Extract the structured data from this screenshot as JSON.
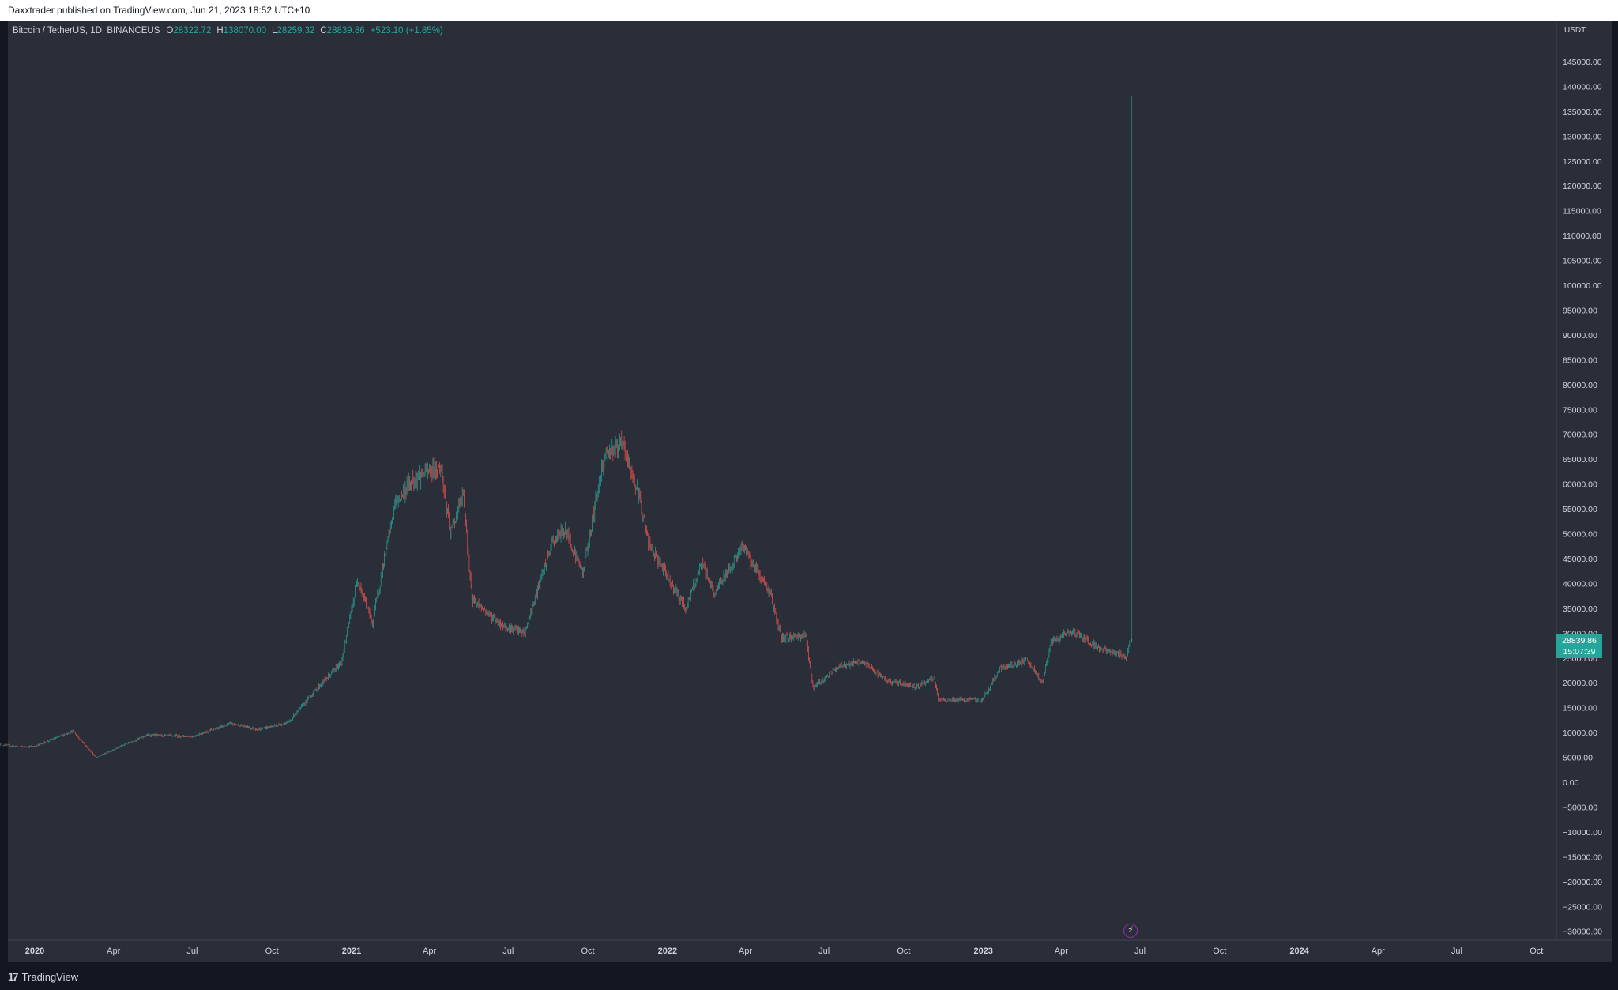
{
  "header": {
    "publisher_text": "Daxxtrader published on TradingView.com, Jun 21, 2023 18:52 UTC+10"
  },
  "legend": {
    "symbol": "Bitcoin / TetherUS, 1D, BINANCEUS",
    "open_label": "O",
    "open": "28322.72",
    "high_label": "H",
    "high": "138070.00",
    "low_label": "L",
    "low": "28259.32",
    "close_label": "C",
    "close": "28839.86",
    "change": "+523.10 (+1.85%)"
  },
  "price_axis": {
    "currency": "USDT",
    "last_price": "28839.86",
    "countdown": "15:07:39"
  },
  "footer": {
    "brand": "TradingView"
  },
  "colors": {
    "up": "#26a69a",
    "down": "#ef5350",
    "background": "#2a2e39",
    "text": "#d1d4dc",
    "flash_icon": "#9c27b0"
  },
  "icons": {
    "flash": "lightning-icon",
    "logo": "tradingview-logo-icon"
  },
  "chart_data": {
    "type": "candlestick",
    "title": "Bitcoin / TetherUS, 1D, BINANCEUS",
    "interval": "1D",
    "ylim": [
      -32000,
      148000
    ],
    "y_ticks": [
      -30000,
      -25000,
      -20000,
      -15000,
      -10000,
      -5000,
      0,
      5000,
      10000,
      15000,
      20000,
      25000,
      30000,
      35000,
      40000,
      45000,
      50000,
      55000,
      60000,
      65000,
      70000,
      75000,
      80000,
      85000,
      90000,
      95000,
      100000,
      105000,
      110000,
      115000,
      120000,
      125000,
      130000,
      135000,
      140000,
      145000
    ],
    "x_tick_labels": [
      "2020",
      "Apr",
      "Jul",
      "Oct",
      "2021",
      "Apr",
      "Jul",
      "Oct",
      "2022",
      "Apr",
      "Jul",
      "Oct",
      "2023",
      "Apr",
      "Jul",
      "Oct",
      "2024",
      "Apr",
      "Jul",
      "Oct"
    ],
    "x_range": [
      "2019-11-20",
      "2024-11-01"
    ],
    "price_path": [
      {
        "date": "2019-11-20",
        "close": 7600
      },
      {
        "date": "2019-12-15",
        "close": 7100
      },
      {
        "date": "2020-01-01",
        "close": 7200
      },
      {
        "date": "2020-02-14",
        "close": 10300
      },
      {
        "date": "2020-03-12",
        "close": 4900
      },
      {
        "date": "2020-04-01",
        "close": 6600
      },
      {
        "date": "2020-05-10",
        "close": 9500
      },
      {
        "date": "2020-07-01",
        "close": 9200
      },
      {
        "date": "2020-08-15",
        "close": 11800
      },
      {
        "date": "2020-09-15",
        "close": 10600
      },
      {
        "date": "2020-10-20",
        "close": 12000
      },
      {
        "date": "2020-11-20",
        "close": 18500
      },
      {
        "date": "2020-12-20",
        "close": 24000
      },
      {
        "date": "2021-01-08",
        "close": 41000
      },
      {
        "date": "2021-01-25",
        "close": 32000
      },
      {
        "date": "2021-02-20",
        "close": 56000
      },
      {
        "date": "2021-03-13",
        "close": 61000
      },
      {
        "date": "2021-04-14",
        "close": 63500
      },
      {
        "date": "2021-04-25",
        "close": 50000
      },
      {
        "date": "2021-05-10",
        "close": 58000
      },
      {
        "date": "2021-05-20",
        "close": 37000
      },
      {
        "date": "2021-06-22",
        "close": 31700
      },
      {
        "date": "2021-07-20",
        "close": 30000
      },
      {
        "date": "2021-08-20",
        "close": 48000
      },
      {
        "date": "2021-09-05",
        "close": 51000
      },
      {
        "date": "2021-09-25",
        "close": 42000
      },
      {
        "date": "2021-10-20",
        "close": 66000
      },
      {
        "date": "2021-11-10",
        "close": 68000
      },
      {
        "date": "2021-11-30",
        "close": 57000
      },
      {
        "date": "2021-12-10",
        "close": 48000
      },
      {
        "date": "2022-01-22",
        "close": 35000
      },
      {
        "date": "2022-02-10",
        "close": 44000
      },
      {
        "date": "2022-02-24",
        "close": 38000
      },
      {
        "date": "2022-03-29",
        "close": 47500
      },
      {
        "date": "2022-04-30",
        "close": 38000
      },
      {
        "date": "2022-05-12",
        "close": 29000
      },
      {
        "date": "2022-06-10",
        "close": 29500
      },
      {
        "date": "2022-06-18",
        "close": 19000
      },
      {
        "date": "2022-07-20",
        "close": 23500
      },
      {
        "date": "2022-08-15",
        "close": 24200
      },
      {
        "date": "2022-09-10",
        "close": 20500
      },
      {
        "date": "2022-10-15",
        "close": 19200
      },
      {
        "date": "2022-11-05",
        "close": 21000
      },
      {
        "date": "2022-11-10",
        "close": 16500
      },
      {
        "date": "2022-12-31",
        "close": 16600
      },
      {
        "date": "2023-01-20",
        "close": 22800
      },
      {
        "date": "2023-02-20",
        "close": 24500
      },
      {
        "date": "2023-03-10",
        "close": 20000
      },
      {
        "date": "2023-03-20",
        "close": 28000
      },
      {
        "date": "2023-04-14",
        "close": 30500
      },
      {
        "date": "2023-05-15",
        "close": 27000
      },
      {
        "date": "2023-06-15",
        "close": 25200
      },
      {
        "date": "2023-06-20",
        "close": 28839.86
      }
    ],
    "last_candle": {
      "date": "2023-06-21",
      "open": 28322.72,
      "high": 138070.0,
      "low": 28259.32,
      "close": 28839.86
    }
  }
}
